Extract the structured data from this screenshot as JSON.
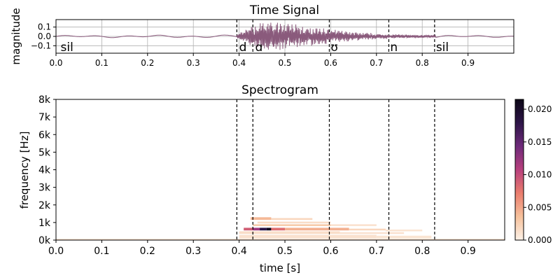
{
  "chart_data": [
    {
      "type": "line",
      "title": "Time Signal",
      "xlabel": "",
      "ylabel": "magnitude",
      "xlim": [
        0.0,
        1.0
      ],
      "ylim": [
        -0.18,
        0.18
      ],
      "x_ticks": [
        "0.0",
        "0.1",
        "0.2",
        "0.3",
        "0.4",
        "0.5",
        "0.6",
        "0.7",
        "0.8",
        "0.9"
      ],
      "x_tick_values": [
        0.0,
        0.1,
        0.2,
        0.3,
        0.4,
        0.5,
        0.6,
        0.7,
        0.8,
        0.9
      ],
      "y_ticks": [
        "0.1",
        "0.0",
        "−0.1"
      ],
      "y_tick_values": [
        0.1,
        0.0,
        -0.1
      ],
      "grid": true,
      "line_color": "#8a5a7c",
      "boundaries": [
        0.395,
        0.43,
        0.597,
        0.727,
        0.827
      ],
      "segments": [
        {
          "label": "sil",
          "x": 0.01
        },
        {
          "label": "d",
          "x": 0.4
        },
        {
          "label": "ɑ",
          "x": 0.435
        },
        {
          "label": "ʊ",
          "x": 0.6
        },
        {
          "label": "n",
          "x": 0.73
        },
        {
          "label": "sil",
          "x": 0.83
        }
      ],
      "envelope": [
        {
          "t": 0.0,
          "a": 0.012
        },
        {
          "t": 0.38,
          "a": 0.015
        },
        {
          "t": 0.395,
          "a": 0.03
        },
        {
          "t": 0.41,
          "a": 0.08
        },
        {
          "t": 0.43,
          "a": 0.13
        },
        {
          "t": 0.45,
          "a": 0.17
        },
        {
          "t": 0.5,
          "a": 0.15
        },
        {
          "t": 0.55,
          "a": 0.11
        },
        {
          "t": 0.597,
          "a": 0.08
        },
        {
          "t": 0.65,
          "a": 0.05
        },
        {
          "t": 0.727,
          "a": 0.025
        },
        {
          "t": 0.8,
          "a": 0.018
        },
        {
          "t": 0.9,
          "a": 0.012
        },
        {
          "t": 1.0,
          "a": 0.01
        }
      ]
    },
    {
      "type": "heatmap",
      "title": "Spectrogram",
      "xlabel": "time [s]",
      "ylabel": "frequency [Hz]",
      "xlim": [
        0.0,
        0.98
      ],
      "ylim": [
        0,
        8000
      ],
      "x_ticks": [
        "0.0",
        "0.1",
        "0.2",
        "0.3",
        "0.4",
        "0.5",
        "0.6",
        "0.7",
        "0.8",
        "0.9"
      ],
      "x_tick_values": [
        0.0,
        0.1,
        0.2,
        0.3,
        0.4,
        0.5,
        0.6,
        0.7,
        0.8,
        0.9
      ],
      "y_ticks": [
        "0k",
        "1k",
        "2k",
        "3k",
        "4k",
        "5k",
        "6k",
        "7k",
        "8k"
      ],
      "y_tick_values": [
        0,
        1000,
        2000,
        3000,
        4000,
        5000,
        6000,
        7000,
        8000
      ],
      "colorbar_ticks": [
        "0.000",
        "0.005",
        "0.010",
        "0.015",
        "0.020"
      ],
      "colorbar_tick_values": [
        0.0,
        0.005,
        0.01,
        0.015,
        0.02
      ],
      "colorbar_range": [
        0.0,
        0.0215
      ],
      "colormap": [
        "#fcf1e7",
        "#f6c19c",
        "#ea7d6d",
        "#b8407d",
        "#6e2a7a",
        "#2d1547",
        "#0b0616"
      ],
      "boundaries": [
        0.395,
        0.43,
        0.597,
        0.727,
        0.827
      ],
      "cells": [
        {
          "t0": 0.425,
          "t1": 0.47,
          "f0": 1150,
          "f1": 1300,
          "v": 0.004
        },
        {
          "t0": 0.47,
          "t1": 0.56,
          "f0": 1150,
          "f1": 1250,
          "v": 0.002
        },
        {
          "t0": 0.44,
          "t1": 0.6,
          "f0": 950,
          "f1": 1050,
          "v": 0.0015
        },
        {
          "t0": 0.43,
          "t1": 0.6,
          "f0": 800,
          "f1": 900,
          "v": 0.003
        },
        {
          "t0": 0.6,
          "t1": 0.7,
          "f0": 800,
          "f1": 900,
          "v": 0.0012
        },
        {
          "t0": 0.41,
          "t1": 0.43,
          "f0": 550,
          "f1": 700,
          "v": 0.009
        },
        {
          "t0": 0.43,
          "t1": 0.445,
          "f0": 550,
          "f1": 700,
          "v": 0.012
        },
        {
          "t0": 0.445,
          "t1": 0.46,
          "f0": 550,
          "f1": 700,
          "v": 0.018
        },
        {
          "t0": 0.46,
          "t1": 0.47,
          "f0": 550,
          "f1": 700,
          "v": 0.021
        },
        {
          "t0": 0.47,
          "t1": 0.5,
          "f0": 550,
          "f1": 700,
          "v": 0.008
        },
        {
          "t0": 0.5,
          "t1": 0.64,
          "f0": 550,
          "f1": 700,
          "v": 0.0045
        },
        {
          "t0": 0.64,
          "t1": 0.72,
          "f0": 550,
          "f1": 650,
          "v": 0.002
        },
        {
          "t0": 0.72,
          "t1": 0.8,
          "f0": 500,
          "f1": 600,
          "v": 0.001
        },
        {
          "t0": 0.4,
          "t1": 0.62,
          "f0": 350,
          "f1": 500,
          "v": 0.0015
        },
        {
          "t0": 0.62,
          "t1": 0.76,
          "f0": 350,
          "f1": 450,
          "v": 0.0012
        },
        {
          "t0": 0.4,
          "t1": 0.7,
          "f0": 100,
          "f1": 300,
          "v": 0.0012
        },
        {
          "t0": 0.7,
          "t1": 0.82,
          "f0": 100,
          "f1": 250,
          "v": 0.001
        },
        {
          "t0": 0.0,
          "t1": 0.98,
          "f0": 0,
          "f1": 80,
          "v": 0.0008
        }
      ]
    }
  ]
}
